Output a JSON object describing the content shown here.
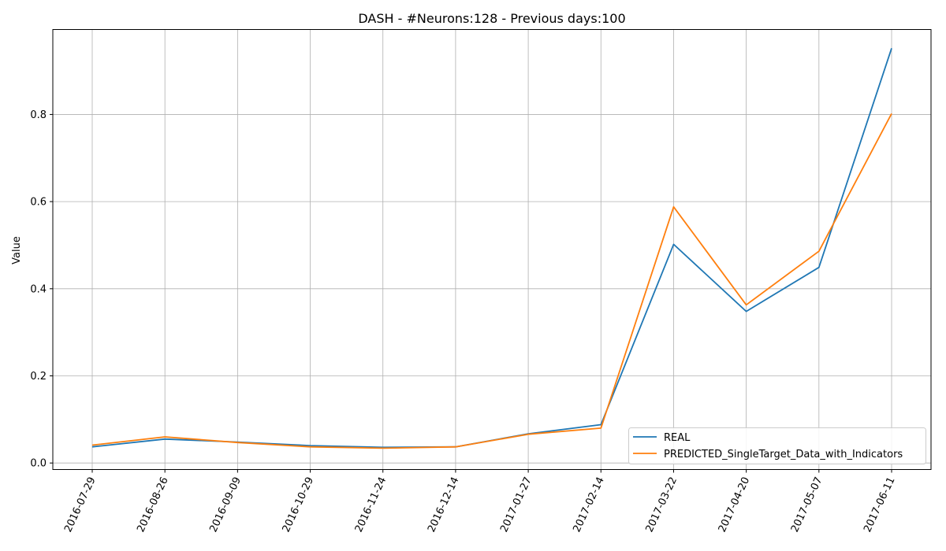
{
  "chart_data": {
    "type": "line",
    "title": "DASH - #Neurons:128 - Previous days:100",
    "xlabel": "",
    "ylabel": "Value",
    "categories": [
      "2016-07-29",
      "2016-08-26",
      "2016-09-09",
      "2016-10-29",
      "2016-11-24",
      "2016-12-14",
      "2017-01-27",
      "2017-02-14",
      "2017-03-22",
      "2017-04-20",
      "2017-05-07",
      "2017-06-11"
    ],
    "yticks": [
      "0.0",
      "0.2",
      "0.4",
      "0.6",
      "0.8"
    ],
    "ylim": [
      -0.015,
      0.995
    ],
    "grid": true,
    "legend_position": "lower-right",
    "series": [
      {
        "name": "REAL",
        "color": "#1f77b4",
        "values": [
          0.037,
          0.055,
          0.048,
          0.04,
          0.036,
          0.037,
          0.067,
          0.088,
          0.502,
          0.348,
          0.449,
          0.952
        ]
      },
      {
        "name": "PREDICTED_SingleTarget_Data_with_Indicators",
        "color": "#ff7f0e",
        "values": [
          0.041,
          0.06,
          0.047,
          0.037,
          0.034,
          0.037,
          0.066,
          0.08,
          0.588,
          0.363,
          0.486,
          0.802
        ]
      }
    ]
  }
}
